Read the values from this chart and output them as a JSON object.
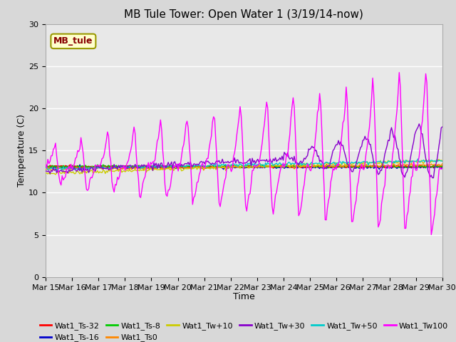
{
  "title": "MB Tule Tower: Open Water 1 (3/19/14-now)",
  "xlabel": "Time",
  "ylabel": "Temperature (C)",
  "ylim": [
    0,
    30
  ],
  "xlim_days": 15,
  "x_tick_labels": [
    "Mar 15",
    "Mar 16",
    "Mar 17",
    "Mar 18",
    "Mar 19",
    "Mar 20",
    "Mar 21",
    "Mar 22",
    "Mar 23",
    "Mar 24",
    "Mar 25",
    "Mar 26",
    "Mar 27",
    "Mar 28",
    "Mar 29",
    "Mar 30"
  ],
  "series_colors": {
    "Wat1_Ts-32": "#ff0000",
    "Wat1_Ts-16": "#0000cc",
    "Wat1_Ts-8": "#00cc00",
    "Wat1_Ts0": "#ff8800",
    "Wat1_Tw+10": "#cccc00",
    "Wat1_Tw+30": "#8800cc",
    "Wat1_Tw+50": "#00cccc",
    "Wat1_Tw100": "#ff00ff"
  },
  "fig_bg_color": "#d8d8d8",
  "plot_bg_color": "#e8e8e8",
  "grid_color": "#ffffff",
  "annotation": {
    "text": "MB_tule",
    "facecolor": "#ffffcc",
    "edgecolor": "#999900",
    "textcolor": "#880000",
    "fontsize": 9,
    "fontweight": "bold"
  },
  "title_fontsize": 11,
  "axis_fontsize": 9,
  "tick_fontsize": 8
}
